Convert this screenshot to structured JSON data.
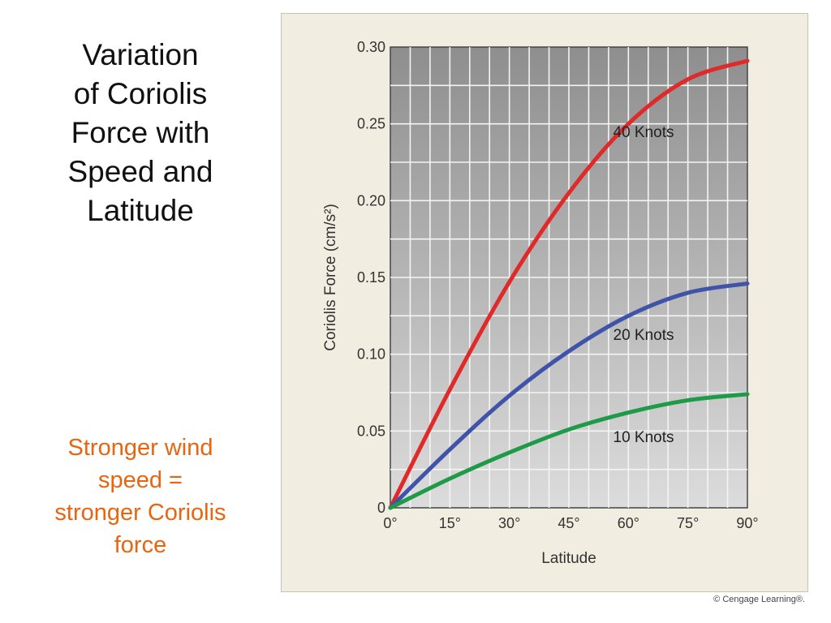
{
  "slide": {
    "title": "Variation\nof Coriolis\nForce with\nSpeed and\nLatitude",
    "note": "Stronger wind\nspeed =\nstronger Coriolis\nforce",
    "credit": "© Cengage Learning®."
  },
  "chart_data": {
    "type": "line",
    "title": "",
    "xlabel": "Latitude",
    "ylabel": "Coriolis Force (cm/s²)",
    "xlim": [
      0,
      90
    ],
    "ylim": [
      0,
      0.3
    ],
    "x_ticks": [
      0,
      15,
      30,
      45,
      60,
      75,
      90
    ],
    "x_tick_labels": [
      "0°",
      "15°",
      "30°",
      "45°",
      "60°",
      "75°",
      "90°"
    ],
    "y_ticks": [
      0,
      0.05,
      0.1,
      0.15,
      0.2,
      0.25,
      0.3
    ],
    "y_tick_labels": [
      "0",
      "0.05",
      "0.10",
      "0.15",
      "0.20",
      "0.25",
      "0.30"
    ],
    "grid": true,
    "x": [
      0,
      15,
      30,
      45,
      60,
      75,
      90
    ],
    "series": [
      {
        "name": "40 Knots",
        "color": "#e02a2a",
        "values": [
          0,
          0.077,
          0.147,
          0.205,
          0.25,
          0.279,
          0.291
        ]
      },
      {
        "name": "20 Knots",
        "color": "#3f53a8",
        "values": [
          0,
          0.038,
          0.073,
          0.102,
          0.125,
          0.14,
          0.146
        ]
      },
      {
        "name": "10 Knots",
        "color": "#1f9a48",
        "values": [
          0,
          0.019,
          0.036,
          0.051,
          0.062,
          0.07,
          0.074
        ]
      }
    ]
  }
}
